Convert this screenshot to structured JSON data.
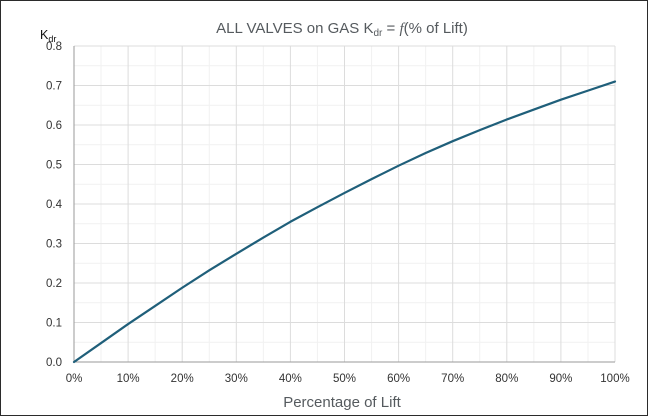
{
  "chart_data": {
    "type": "line",
    "title": {
      "prefix": "ALL VALVES on GAS K",
      "subscript": "dr",
      "suffix_eq": " = ",
      "function": "f",
      "suffix": "(% of Lift)"
    },
    "xlabel": "Percentage of Lift",
    "ylabel": {
      "main": "K",
      "subscript": "dr"
    },
    "xlim": [
      0,
      100
    ],
    "ylim": [
      0,
      0.8
    ],
    "x_ticks": [
      0,
      10,
      20,
      30,
      40,
      50,
      60,
      70,
      80,
      90,
      100
    ],
    "x_tick_labels": [
      "0%",
      "10%",
      "20%",
      "30%",
      "40%",
      "50%",
      "60%",
      "70%",
      "80%",
      "90%",
      "100%"
    ],
    "y_ticks": [
      0,
      0.1,
      0.2,
      0.3,
      0.4,
      0.5,
      0.6,
      0.7,
      0.8
    ],
    "y_tick_labels": [
      "0.0",
      "0.1",
      "0.2",
      "0.3",
      "0.4",
      "0.5",
      "0.6",
      "0.7",
      "0.8"
    ],
    "grid": true,
    "legend": "none",
    "series": [
      {
        "color": "#1f5f7a",
        "x": [
          0,
          5,
          10,
          15,
          20,
          25,
          30,
          35,
          40,
          45,
          50,
          55,
          60,
          65,
          70,
          75,
          80,
          85,
          90,
          95,
          100
        ],
        "y": [
          0.0,
          0.048,
          0.096,
          0.142,
          0.188,
          0.232,
          0.274,
          0.315,
          0.355,
          0.392,
          0.428,
          0.463,
          0.497,
          0.529,
          0.559,
          0.587,
          0.614,
          0.639,
          0.664,
          0.687,
          0.71
        ]
      }
    ]
  }
}
